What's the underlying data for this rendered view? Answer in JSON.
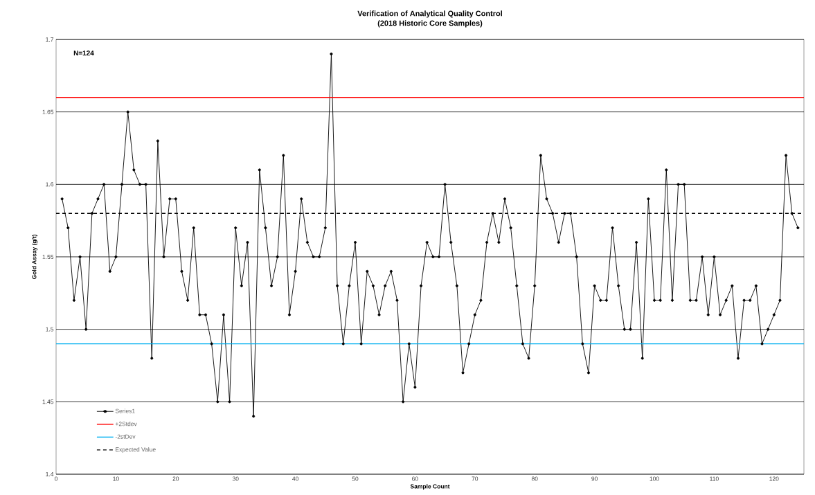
{
  "chart_data": {
    "type": "line",
    "title": "Verification of Analytical Quality Control",
    "subtitle": "(2018 Historic Core Samples)",
    "xlabel": "Sample Count",
    "ylabel": "Gold Assay (g/t)",
    "x": [
      1,
      2,
      3,
      4,
      5,
      6,
      7,
      8,
      9,
      10,
      11,
      12,
      13,
      14,
      15,
      16,
      17,
      18,
      19,
      20,
      21,
      22,
      23,
      24,
      25,
      26,
      27,
      28,
      29,
      30,
      31,
      32,
      33,
      34,
      35,
      36,
      37,
      38,
      39,
      40,
      41,
      42,
      43,
      44,
      45,
      46,
      47,
      48,
      49,
      50,
      51,
      52,
      53,
      54,
      55,
      56,
      57,
      58,
      59,
      60,
      61,
      62,
      63,
      64,
      65,
      66,
      67,
      68,
      69,
      70,
      71,
      72,
      73,
      74,
      75,
      76,
      77,
      78,
      79,
      80,
      81,
      82,
      83,
      84,
      85,
      86,
      87,
      88,
      89,
      90,
      91,
      92,
      93,
      94,
      95,
      96,
      97,
      98,
      99,
      100,
      101,
      102,
      103,
      104,
      105,
      106,
      107,
      108,
      109,
      110,
      111,
      112,
      113,
      114,
      115,
      116,
      117,
      118,
      119,
      120,
      121,
      122,
      123,
      124
    ],
    "series": [
      {
        "name": "Series1",
        "color": "#000000",
        "marker": "circle",
        "line_style": "solid",
        "values": [
          1.59,
          1.57,
          1.52,
          1.55,
          1.5,
          1.58,
          1.59,
          1.6,
          1.54,
          1.55,
          1.6,
          1.65,
          1.61,
          1.6,
          1.6,
          1.48,
          1.63,
          1.55,
          1.59,
          1.59,
          1.54,
          1.52,
          1.57,
          1.51,
          1.51,
          1.49,
          1.45,
          1.51,
          1.45,
          1.57,
          1.53,
          1.56,
          1.44,
          1.61,
          1.57,
          1.53,
          1.55,
          1.62,
          1.51,
          1.54,
          1.59,
          1.56,
          1.55,
          1.55,
          1.57,
          1.69,
          1.53,
          1.49,
          1.53,
          1.56,
          1.49,
          1.54,
          1.53,
          1.51,
          1.53,
          1.54,
          1.52,
          1.45,
          1.49,
          1.46,
          1.53,
          1.56,
          1.55,
          1.55,
          1.6,
          1.56,
          1.53,
          1.47,
          1.49,
          1.51,
          1.52,
          1.56,
          1.58,
          1.56,
          1.59,
          1.57,
          1.53,
          1.49,
          1.48,
          1.53,
          1.62,
          1.59,
          1.58,
          1.56,
          1.58,
          1.58,
          1.55,
          1.49,
          1.47,
          1.53,
          1.52,
          1.52,
          1.57,
          1.53,
          1.5,
          1.5,
          1.56,
          1.48,
          1.59,
          1.52,
          1.52,
          1.61,
          1.52,
          1.6,
          1.6,
          1.52,
          1.52,
          1.55,
          1.51,
          1.55,
          1.51,
          1.52,
          1.53,
          1.48,
          1.52,
          1.52,
          1.53,
          1.49,
          1.5,
          1.51,
          1.52,
          1.62,
          1.58,
          1.57
        ]
      }
    ],
    "ref_lines": [
      {
        "axis": "y",
        "value": 1.66,
        "label": "+2Stdev",
        "color": "#ff0000",
        "line_style": "solid"
      },
      {
        "axis": "y",
        "value": 1.49,
        "label": "-2stDev",
        "color": "#00b0f0",
        "line_style": "solid"
      },
      {
        "axis": "y",
        "value": 1.58,
        "label": "Expected Value",
        "color": "#000000",
        "line_style": "dashed"
      }
    ],
    "xlim": [
      0,
      125
    ],
    "xticks": [
      0,
      10,
      20,
      30,
      40,
      50,
      60,
      70,
      80,
      90,
      100,
      110,
      120
    ],
    "ylim": [
      1.4,
      1.7
    ],
    "yticks": [
      1.4,
      1.45,
      1.5,
      1.55,
      1.6,
      1.65,
      1.7
    ],
    "grid": "y",
    "legend": "bottom left",
    "annotations": [
      "N=124"
    ]
  }
}
